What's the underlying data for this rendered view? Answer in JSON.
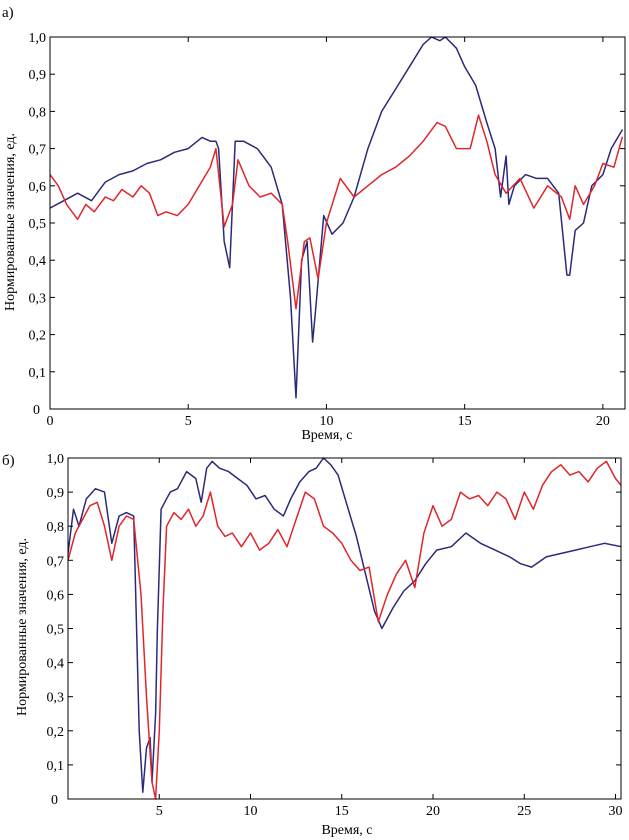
{
  "chart_data": [
    {
      "type": "line",
      "panel_label": "а)",
      "xlabel": "Время, с",
      "ylabel": "Нормированные значения, ед.",
      "xlim": [
        0,
        20.8
      ],
      "ylim": [
        0,
        1.0
      ],
      "xticks": [
        0,
        5,
        10,
        15,
        20
      ],
      "xtick_labels": [
        "0",
        "5",
        "10",
        "15",
        "20"
      ],
      "yticks": [
        0.1,
        0.2,
        0.3,
        0.4,
        0.5,
        0.6,
        0.7,
        0.8,
        0.9,
        1.0
      ],
      "ytick_labels": [
        "0,1",
        "0,2",
        "0,3",
        "0,4",
        "0,5",
        "0,6",
        "0,7",
        "0,8",
        "0,9",
        "1,0"
      ],
      "zero_label": "0",
      "grid": false,
      "series": [
        {
          "color": "#2b2a7a",
          "x": [
            0,
            0.5,
            1.0,
            1.5,
            2.0,
            2.5,
            3.0,
            3.5,
            4.0,
            4.5,
            5.0,
            5.5,
            5.8,
            6.0,
            6.1,
            6.3,
            6.5,
            6.7,
            7.0,
            7.5,
            8.0,
            8.4,
            8.7,
            8.9,
            9.1,
            9.3,
            9.5,
            9.6,
            9.9,
            10.2,
            10.6,
            11.0,
            11.5,
            12.0,
            12.5,
            13.0,
            13.5,
            13.8,
            14.1,
            14.3,
            14.7,
            15.0,
            15.4,
            15.8,
            16.1,
            16.3,
            16.5,
            16.6,
            16.8,
            17.2,
            17.6,
            18.0,
            18.4,
            18.7,
            18.8,
            19.0,
            19.3,
            19.6,
            20.0,
            20.3,
            20.7
          ],
          "values": [
            0.54,
            0.56,
            0.58,
            0.56,
            0.61,
            0.63,
            0.64,
            0.66,
            0.67,
            0.69,
            0.7,
            0.73,
            0.72,
            0.72,
            0.7,
            0.45,
            0.38,
            0.72,
            0.72,
            0.7,
            0.65,
            0.55,
            0.3,
            0.03,
            0.4,
            0.45,
            0.18,
            0.26,
            0.52,
            0.47,
            0.5,
            0.57,
            0.7,
            0.8,
            0.86,
            0.92,
            0.98,
            1.0,
            0.99,
            1.0,
            0.97,
            0.92,
            0.87,
            0.77,
            0.7,
            0.57,
            0.68,
            0.55,
            0.6,
            0.63,
            0.62,
            0.62,
            0.58,
            0.36,
            0.36,
            0.48,
            0.5,
            0.6,
            0.63,
            0.7,
            0.75
          ]
        },
        {
          "color": "#e0262a",
          "x": [
            0,
            0.3,
            0.6,
            1.0,
            1.3,
            1.6,
            2.0,
            2.3,
            2.6,
            3.0,
            3.3,
            3.6,
            3.9,
            4.2,
            4.6,
            5.0,
            5.4,
            5.8,
            6.0,
            6.3,
            6.6,
            6.8,
            7.2,
            7.6,
            8.0,
            8.4,
            8.6,
            8.9,
            9.2,
            9.4,
            9.7,
            10.0,
            10.5,
            11.0,
            11.5,
            12.0,
            12.5,
            13.0,
            13.5,
            14.0,
            14.3,
            14.7,
            15.2,
            15.5,
            15.8,
            16.1,
            16.5,
            17.0,
            17.5,
            18.0,
            18.5,
            18.8,
            19.0,
            19.3,
            19.7,
            20.0,
            20.4,
            20.7
          ],
          "values": [
            0.63,
            0.6,
            0.55,
            0.51,
            0.55,
            0.53,
            0.57,
            0.56,
            0.59,
            0.57,
            0.6,
            0.58,
            0.52,
            0.53,
            0.52,
            0.55,
            0.6,
            0.65,
            0.7,
            0.49,
            0.55,
            0.67,
            0.6,
            0.57,
            0.58,
            0.55,
            0.45,
            0.27,
            0.45,
            0.46,
            0.35,
            0.5,
            0.62,
            0.57,
            0.6,
            0.63,
            0.65,
            0.68,
            0.72,
            0.77,
            0.76,
            0.7,
            0.7,
            0.79,
            0.72,
            0.63,
            0.58,
            0.62,
            0.54,
            0.6,
            0.57,
            0.51,
            0.6,
            0.55,
            0.6,
            0.66,
            0.65,
            0.73
          ]
        }
      ]
    },
    {
      "type": "line",
      "panel_label": "б)",
      "xlabel": "Время, с",
      "ylabel": "Нормированные значения, ед.",
      "xlim": [
        0,
        30.3
      ],
      "ylim": [
        0,
        1.0
      ],
      "xticks": [
        0,
        5,
        10,
        15,
        20,
        25,
        30
      ],
      "xtick_labels": [
        "",
        "5",
        "10",
        "15",
        "20",
        "25",
        "30"
      ],
      "yticks": [
        0.1,
        0.2,
        0.3,
        0.4,
        0.5,
        0.6,
        0.7,
        0.8,
        0.9,
        1.0
      ],
      "ytick_labels": [
        "0,1",
        "0,2",
        "0,3",
        "0,4",
        "0,5",
        "0,6",
        "0,7",
        "0,8",
        "0,9",
        "1,0"
      ],
      "zero_label": "0",
      "grid": false,
      "series": [
        {
          "color": "#2b2a7a",
          "x": [
            0,
            0.3,
            0.6,
            1.0,
            1.5,
            2.0,
            2.4,
            2.8,
            3.2,
            3.6,
            3.9,
            4.1,
            4.3,
            4.5,
            4.6,
            4.8,
            4.9,
            5.1,
            5.3,
            5.6,
            6.0,
            6.5,
            7.0,
            7.3,
            7.6,
            7.9,
            8.3,
            8.8,
            9.3,
            9.8,
            10.3,
            10.8,
            11.3,
            11.8,
            12.2,
            12.7,
            13.2,
            13.6,
            14.0,
            14.4,
            14.8,
            15.3,
            15.8,
            16.3,
            16.8,
            17.2,
            17.8,
            18.4,
            19.0,
            19.6,
            20.2,
            21.0,
            21.8,
            22.6,
            23.4,
            24.2,
            24.8,
            25.4,
            26.2,
            27.0,
            27.8,
            28.6,
            29.4,
            30.3
          ],
          "values": [
            0.72,
            0.85,
            0.8,
            0.88,
            0.91,
            0.9,
            0.75,
            0.83,
            0.84,
            0.83,
            0.2,
            0.02,
            0.15,
            0.18,
            0.05,
            0.25,
            0.5,
            0.85,
            0.87,
            0.9,
            0.91,
            0.96,
            0.94,
            0.87,
            0.97,
            0.99,
            0.97,
            0.96,
            0.94,
            0.92,
            0.88,
            0.89,
            0.85,
            0.83,
            0.88,
            0.93,
            0.96,
            0.97,
            1.0,
            0.98,
            0.95,
            0.86,
            0.77,
            0.66,
            0.55,
            0.5,
            0.56,
            0.61,
            0.64,
            0.69,
            0.73,
            0.74,
            0.78,
            0.75,
            0.73,
            0.71,
            0.69,
            0.68,
            0.71,
            0.72,
            0.73,
            0.74,
            0.75,
            0.74
          ]
        },
        {
          "color": "#e0262a",
          "x": [
            0,
            0.4,
            0.8,
            1.2,
            1.6,
            2.0,
            2.4,
            2.8,
            3.2,
            3.6,
            4.0,
            4.3,
            4.6,
            4.8,
            5.0,
            5.2,
            5.4,
            5.8,
            6.2,
            6.6,
            7.0,
            7.4,
            7.8,
            8.2,
            8.6,
            9.0,
            9.5,
            10.0,
            10.5,
            11.0,
            11.5,
            12.0,
            12.5,
            13.0,
            13.5,
            14.0,
            14.5,
            15.0,
            15.5,
            16.0,
            16.5,
            17.0,
            17.5,
            18.0,
            18.5,
            19.0,
            19.5,
            20.0,
            20.5,
            21.0,
            21.5,
            22.0,
            22.5,
            23.0,
            23.5,
            24.0,
            24.5,
            25.0,
            25.5,
            26.0,
            26.5,
            27.0,
            27.5,
            28.0,
            28.5,
            29.0,
            29.5,
            30.0,
            30.3
          ],
          "values": [
            0.7,
            0.78,
            0.82,
            0.86,
            0.87,
            0.8,
            0.7,
            0.8,
            0.83,
            0.82,
            0.6,
            0.3,
            0.05,
            0.0,
            0.2,
            0.55,
            0.8,
            0.84,
            0.82,
            0.85,
            0.8,
            0.83,
            0.9,
            0.8,
            0.77,
            0.78,
            0.74,
            0.78,
            0.73,
            0.75,
            0.79,
            0.74,
            0.82,
            0.9,
            0.88,
            0.8,
            0.78,
            0.75,
            0.7,
            0.67,
            0.68,
            0.52,
            0.6,
            0.66,
            0.7,
            0.62,
            0.78,
            0.86,
            0.8,
            0.82,
            0.9,
            0.88,
            0.89,
            0.86,
            0.9,
            0.88,
            0.82,
            0.9,
            0.85,
            0.92,
            0.96,
            0.98,
            0.95,
            0.96,
            0.93,
            0.97,
            0.99,
            0.94,
            0.92
          ]
        }
      ]
    }
  ]
}
